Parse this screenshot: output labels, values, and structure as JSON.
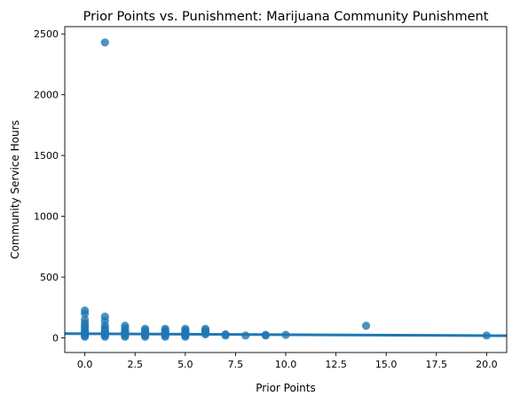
{
  "chart_data": {
    "type": "scatter",
    "title": "Prior Points vs. Punishment: Marijuana Community Punishment",
    "xlabel": "Prior Points",
    "ylabel": "Community Service Hours",
    "xlim": [
      -1,
      21
    ],
    "ylim": [
      -120,
      2560
    ],
    "x_ticks": [
      0,
      2.5,
      5,
      7.5,
      10,
      12.5,
      15,
      17.5,
      20
    ],
    "x_tick_labels": [
      "0.0",
      "2.5",
      "5.0",
      "7.5",
      "10.0",
      "12.5",
      "15.0",
      "17.5",
      "20.0"
    ],
    "y_ticks": [
      0,
      500,
      1000,
      1500,
      2000,
      2500
    ],
    "y_tick_labels": [
      "0",
      "500",
      "1000",
      "1500",
      "2000",
      "2500"
    ],
    "grid": false,
    "legend": "none",
    "series": [
      {
        "kind": "points",
        "color": "#1f77b4",
        "points": [
          [
            0,
            225
          ],
          [
            0,
            200
          ],
          [
            0,
            150
          ],
          [
            0,
            120
          ],
          [
            0,
            100
          ],
          [
            0,
            80
          ],
          [
            0,
            60
          ],
          [
            0,
            50
          ],
          [
            0,
            40
          ],
          [
            0,
            30
          ],
          [
            0,
            20
          ],
          [
            0,
            10
          ],
          [
            1,
            2430
          ],
          [
            1,
            175
          ],
          [
            1,
            140
          ],
          [
            1,
            100
          ],
          [
            1,
            80
          ],
          [
            1,
            60
          ],
          [
            1,
            50
          ],
          [
            1,
            40
          ],
          [
            1,
            30
          ],
          [
            1,
            20
          ],
          [
            1,
            10
          ],
          [
            2,
            100
          ],
          [
            2,
            80
          ],
          [
            2,
            60
          ],
          [
            2,
            50
          ],
          [
            2,
            40
          ],
          [
            2,
            30
          ],
          [
            2,
            20
          ],
          [
            2,
            10
          ],
          [
            3,
            75
          ],
          [
            3,
            60
          ],
          [
            3,
            50
          ],
          [
            3,
            40
          ],
          [
            3,
            30
          ],
          [
            3,
            20
          ],
          [
            3,
            10
          ],
          [
            4,
            75
          ],
          [
            4,
            60
          ],
          [
            4,
            50
          ],
          [
            4,
            40
          ],
          [
            4,
            30
          ],
          [
            4,
            20
          ],
          [
            4,
            10
          ],
          [
            5,
            75
          ],
          [
            5,
            60
          ],
          [
            5,
            50
          ],
          [
            5,
            40
          ],
          [
            5,
            30
          ],
          [
            5,
            20
          ],
          [
            5,
            10
          ],
          [
            6,
            75
          ],
          [
            6,
            60
          ],
          [
            6,
            50
          ],
          [
            6,
            40
          ],
          [
            6,
            30
          ],
          [
            7,
            30
          ],
          [
            7,
            20
          ],
          [
            8,
            20
          ],
          [
            9,
            25
          ],
          [
            9,
            20
          ],
          [
            10,
            25
          ],
          [
            14,
            100
          ],
          [
            20,
            20
          ]
        ]
      },
      {
        "kind": "regression-line",
        "color": "#1f77b4",
        "line": [
          [
            -1,
            35
          ],
          [
            21,
            18
          ]
        ]
      }
    ]
  }
}
